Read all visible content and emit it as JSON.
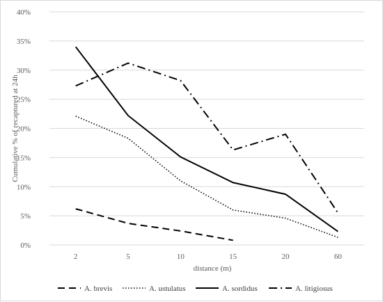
{
  "chart_data": {
    "type": "line",
    "title": "",
    "xlabel": "distance (m)",
    "ylabel": "Cumulative % of recaptured at 24h",
    "categories": [
      "2",
      "5",
      "10",
      "15",
      "20",
      "60"
    ],
    "ylim": [
      0,
      40
    ],
    "y_ticks": [
      "0%",
      "5%",
      "10%",
      "15%",
      "20%",
      "25%",
      "30%",
      "35%",
      "40%"
    ],
    "grid": "horizontal",
    "legend_position": "bottom",
    "series": [
      {
        "name": "A. brevis",
        "dash": "dashed",
        "values": [
          6.2,
          3.7,
          2.4,
          0.8,
          null,
          null
        ]
      },
      {
        "name": "A. ustulatus",
        "dash": "dotted",
        "values": [
          22.1,
          18.3,
          11.0,
          6.0,
          4.6,
          1.3
        ]
      },
      {
        "name": "A. sordidus",
        "dash": "solid",
        "values": [
          34.0,
          22.2,
          15.1,
          10.7,
          8.7,
          2.3
        ]
      },
      {
        "name": "A. litigiosus",
        "dash": "dashdot",
        "values": [
          27.3,
          31.2,
          28.2,
          16.3,
          19.0,
          5.5
        ]
      }
    ],
    "line_color": "#000000",
    "grid_color": "#d9d9d9"
  }
}
